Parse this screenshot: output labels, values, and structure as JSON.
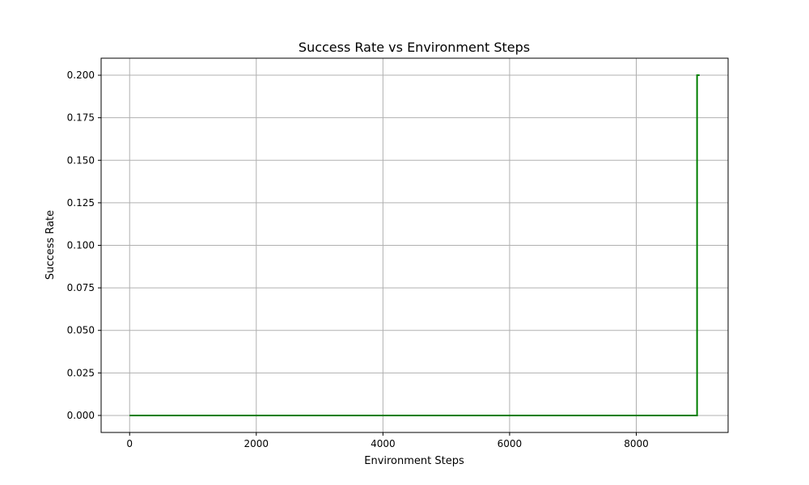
{
  "chart_data": {
    "type": "line",
    "title": "Success Rate vs Environment Steps",
    "xlabel": "Environment Steps",
    "ylabel": "Success Rate",
    "xlim": [
      -450,
      9450
    ],
    "ylim": [
      -0.01,
      0.21
    ],
    "x_ticks": [
      0,
      2000,
      4000,
      6000,
      8000
    ],
    "x_tick_labels": [
      "0",
      "2000",
      "4000",
      "6000",
      "8000"
    ],
    "y_ticks": [
      0.0,
      0.025,
      0.05,
      0.075,
      0.1,
      0.125,
      0.15,
      0.175,
      0.2
    ],
    "y_tick_labels": [
      "0.000",
      "0.025",
      "0.050",
      "0.075",
      "0.100",
      "0.125",
      "0.150",
      "0.175",
      "0.200"
    ],
    "grid": true,
    "series": [
      {
        "color": "#007f00",
        "x": [
          0,
          8960,
          8960,
          9000
        ],
        "y": [
          0.0,
          0.0,
          0.2,
          0.2
        ]
      }
    ]
  }
}
